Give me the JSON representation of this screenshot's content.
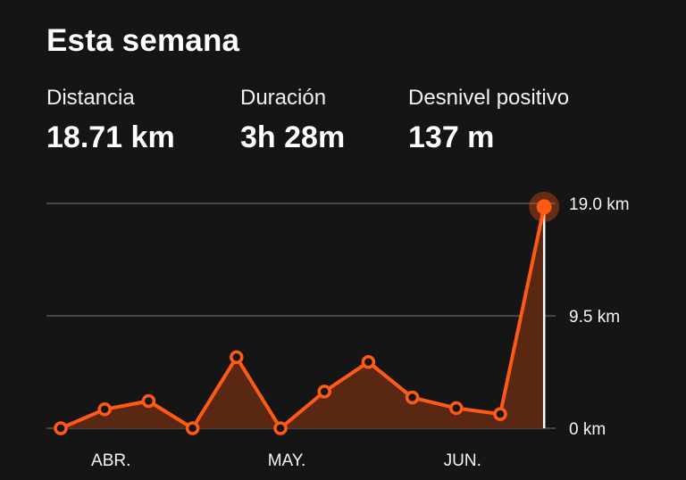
{
  "header": {
    "title": "Esta semana"
  },
  "stats": {
    "distance": {
      "label": "Distancia",
      "value": "18.71 km"
    },
    "duration": {
      "label": "Duración",
      "value": "3h 28m"
    },
    "elevation": {
      "label": "Desnivel positivo",
      "value": "137 m"
    }
  },
  "colors": {
    "background": "#151515",
    "accent": "#ff5a14",
    "area_fill": "#5a2712",
    "gridline": "#555555",
    "text": "#ffffff"
  },
  "chart_data": {
    "type": "area",
    "title": "",
    "xlabel": "",
    "ylabel": "",
    "ylim": [
      0,
      19.0
    ],
    "y_ticks": [
      "19.0 km",
      "9.5 km",
      "0 km"
    ],
    "y_tick_values": [
      19.0,
      9.5,
      0
    ],
    "x_tick_labels": [
      "ABR.",
      "MAY.",
      "JUN."
    ],
    "x_tick_week_index": [
      1,
      5,
      9
    ],
    "grid": true,
    "highlighted_week_index": 11,
    "series": [
      {
        "values": [
          0,
          1.6,
          2.3,
          0,
          6.0,
          0,
          3.1,
          5.6,
          2.6,
          1.7,
          1.2,
          18.71
        ]
      }
    ]
  }
}
